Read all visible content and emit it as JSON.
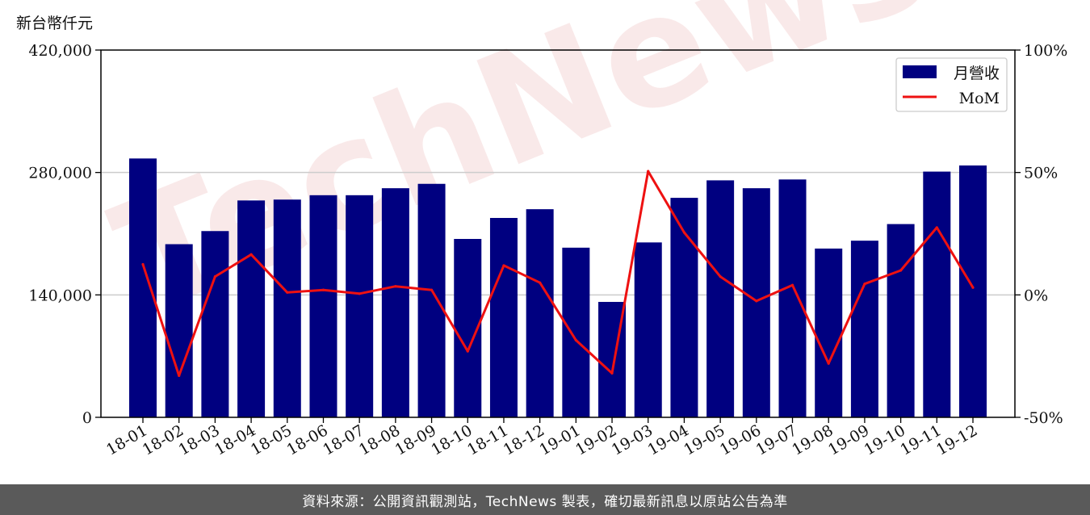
{
  "unit_label": "新台幣仟元",
  "footer": "資料來源：公開資訊觀測站，TechNews 製表，確切最新訊息以原站公告為準",
  "watermark": "TechNews",
  "colors": {
    "bar": "#000080",
    "line": "#ee1111",
    "grid": "#cccccc",
    "footer_bg": "#5a5a5a"
  },
  "chart_data": {
    "type": "bar",
    "title": "",
    "xlabel": "",
    "ylabel": "新台幣仟元",
    "categories": [
      "18-01",
      "18-02",
      "18-03",
      "18-04",
      "18-05",
      "18-06",
      "18-07",
      "18-08",
      "18-09",
      "18-10",
      "18-11",
      "18-12",
      "19-01",
      "19-02",
      "19-03",
      "19-04",
      "19-05",
      "19-06",
      "19-07",
      "19-08",
      "19-09",
      "19-10",
      "19-11",
      "19-12"
    ],
    "series": [
      {
        "name": "月營收",
        "type": "bar",
        "axis": "left",
        "values": [
          296000,
          198000,
          213000,
          248000,
          249000,
          254000,
          254000,
          262000,
          267000,
          204000,
          228000,
          238000,
          194000,
          132000,
          200000,
          251000,
          271000,
          262000,
          272000,
          193000,
          202000,
          221000,
          281000,
          288000
        ]
      },
      {
        "name": "MoM",
        "type": "line",
        "axis": "right",
        "values": [
          12.5,
          -33,
          7.5,
          16.5,
          1,
          2,
          0.5,
          3.5,
          2,
          -23,
          12,
          5,
          -18.5,
          -32,
          50.5,
          25.5,
          7.5,
          -2.5,
          4,
          -28,
          4.5,
          10,
          27.5,
          3
        ]
      }
    ],
    "ylim": [
      0,
      420000
    ],
    "yticks": [
      "0",
      "140,000",
      "280,000",
      "420,000"
    ],
    "y2lim": [
      -50,
      100
    ],
    "y2ticks": [
      "-50%",
      "0%",
      "50%",
      "100%"
    ],
    "grid": true,
    "legend": {
      "position": "top-right",
      "entries": [
        "月營收",
        "MoM"
      ]
    }
  }
}
